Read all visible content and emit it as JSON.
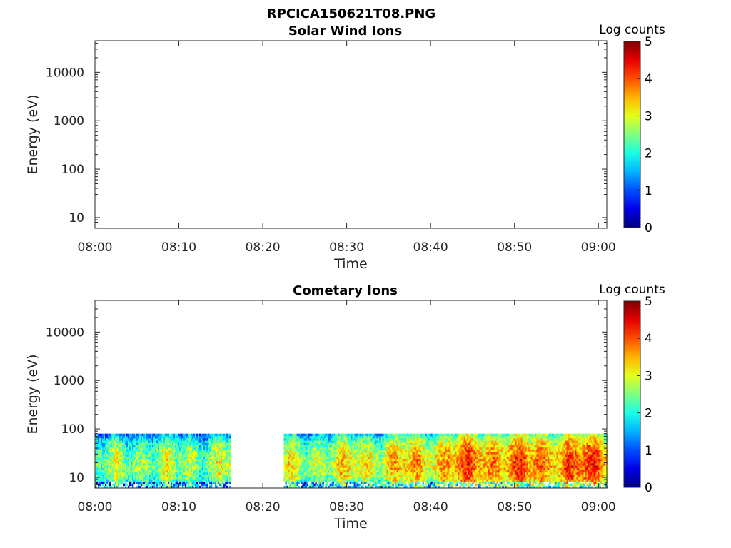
{
  "figure": {
    "title": "RPCICA150621T08.PNG"
  },
  "chart_data": [
    {
      "type": "heatmap",
      "title": "Solar Wind Ions",
      "xlabel": "Time",
      "ylabel": "Energy (eV)",
      "y_scale": "log",
      "x_range": [
        "08:00",
        "09:01"
      ],
      "y_range": [
        6,
        45000
      ],
      "x_ticks": [
        "08:00",
        "08:10",
        "08:20",
        "08:30",
        "08:40",
        "08:50",
        "09:00"
      ],
      "y_ticks": [
        "10",
        "100",
        "1000",
        "10000"
      ],
      "colorbar": {
        "label": "Log counts",
        "range": [
          0,
          5
        ],
        "ticks": [
          "0",
          "1",
          "2",
          "3",
          "4",
          "5"
        ],
        "colormap": "jet"
      },
      "data_coverage": []
    },
    {
      "type": "heatmap",
      "title": "Cometary Ions",
      "xlabel": "Time",
      "ylabel": "Energy (eV)",
      "y_scale": "log",
      "x_range": [
        "08:00",
        "09:01"
      ],
      "y_range": [
        6,
        45000
      ],
      "x_ticks": [
        "08:00",
        "08:10",
        "08:20",
        "08:30",
        "08:40",
        "08:50",
        "09:00"
      ],
      "y_ticks": [
        "10",
        "100",
        "1000",
        "10000"
      ],
      "colorbar": {
        "label": "Log counts",
        "range": [
          0,
          5
        ],
        "ticks": [
          "0",
          "1",
          "2",
          "3",
          "4",
          "5"
        ],
        "colormap": "jet"
      },
      "energy_band_eV": [
        6,
        80
      ],
      "data_coverage": [
        {
          "start": "08:00",
          "end": "08:16"
        },
        {
          "start": "08:22.5",
          "end": "09:01"
        }
      ],
      "intensity_profile": [
        {
          "time": "08:00",
          "log_counts": 2.0
        },
        {
          "time": "08:05",
          "log_counts": 2.3
        },
        {
          "time": "08:10",
          "log_counts": 2.2
        },
        {
          "time": "08:15",
          "log_counts": 2.4
        },
        {
          "time": "08:25",
          "log_counts": 2.4
        },
        {
          "time": "08:30",
          "log_counts": 2.6
        },
        {
          "time": "08:35",
          "log_counts": 2.8
        },
        {
          "time": "08:40",
          "log_counts": 3.0
        },
        {
          "time": "08:45",
          "log_counts": 3.4
        },
        {
          "time": "08:50",
          "log_counts": 3.3
        },
        {
          "time": "08:55",
          "log_counts": 3.4
        },
        {
          "time": "09:00",
          "log_counts": 3.5
        }
      ]
    }
  ]
}
